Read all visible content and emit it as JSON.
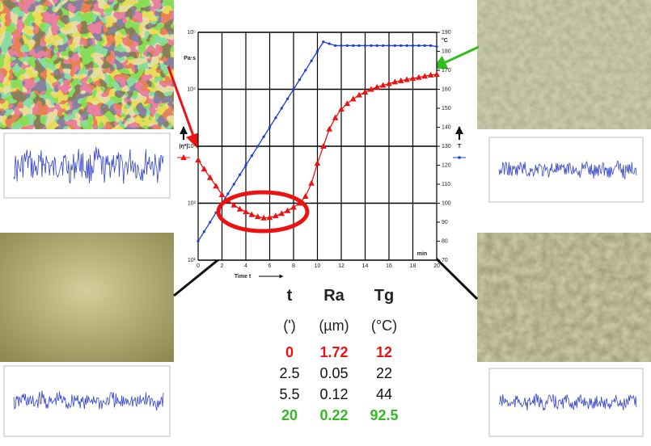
{
  "chart_data": {
    "type": "line",
    "xlabel": "Time t",
    "x_unit": "min",
    "y_unit": "Pa·s",
    "y2_unit": "°C",
    "x": [
      0,
      0.5,
      1,
      1.5,
      2,
      2.5,
      3,
      3.5,
      4,
      4.5,
      5,
      5.5,
      6,
      6.5,
      7,
      7.5,
      8,
      8.5,
      9,
      9.5,
      10,
      10.5,
      11,
      11.5,
      12,
      12.5,
      13,
      13.5,
      14,
      14.5,
      15,
      15.5,
      16,
      16.5,
      17,
      17.5,
      18,
      18.5,
      19,
      19.5,
      20
    ],
    "series": [
      {
        "name": "|η*|",
        "color": "#ee1111",
        "marker": "triangle",
        "axis": "y",
        "values": [
          575,
          398,
          282,
          200,
          141,
          112,
          93,
          79,
          71,
          63,
          58,
          55,
          56,
          60,
          66,
          74,
          85,
          100,
          132,
          224,
          501,
          1000,
          2000,
          3160,
          4470,
          5620,
          6760,
          7940,
          8910,
          10000,
          10960,
          11750,
          12590,
          13490,
          14130,
          14790,
          15490,
          16220,
          16980,
          17780,
          18200
        ]
      },
      {
        "name": "T",
        "color": "#1a3fd6",
        "marker": "dot",
        "axis": "y2",
        "values": [
          80,
          85,
          90,
          95,
          100,
          105,
          110,
          115,
          120,
          125,
          130,
          135,
          140,
          145,
          150,
          155,
          160,
          165,
          170,
          175,
          180,
          185,
          184,
          183,
          183,
          183,
          183,
          183,
          183,
          183,
          183,
          183,
          183,
          183,
          183,
          183,
          183,
          183,
          183,
          183,
          182.5
        ]
      }
    ],
    "xlim": [
      0,
      20
    ],
    "xticks": [
      0,
      2,
      4,
      6,
      8,
      10,
      12,
      14,
      16,
      18,
      20
    ],
    "ylog": true,
    "ylim": [
      10,
      100000
    ],
    "yticks": [
      {
        "value": 10,
        "label": "10¹"
      },
      {
        "value": 100,
        "label": "10²"
      },
      {
        "value": 1000,
        "label": "10³"
      },
      {
        "value": 10000,
        "label": "10⁴"
      },
      {
        "value": 100000,
        "label": "10⁵"
      }
    ],
    "y2lim": [
      70,
      190
    ],
    "y2ticks": [
      70,
      80,
      90,
      100,
      110,
      120,
      130,
      140,
      150,
      160,
      170,
      180,
      190
    ],
    "grid": true
  },
  "table": {
    "header": [
      "t",
      "Ra",
      "Tg"
    ],
    "units": [
      "(')",
      "(µm)",
      "(°C)"
    ],
    "rows": [
      [
        "0",
        "1.72",
        "12"
      ],
      [
        "2.5",
        "0.05",
        "22"
      ],
      [
        "5.5",
        "0.12",
        "44"
      ],
      [
        "20",
        "0.22",
        "92.5"
      ]
    ],
    "row_colors": [
      "#ee1111",
      "#111111",
      "#111111",
      "#33bb22"
    ]
  }
}
